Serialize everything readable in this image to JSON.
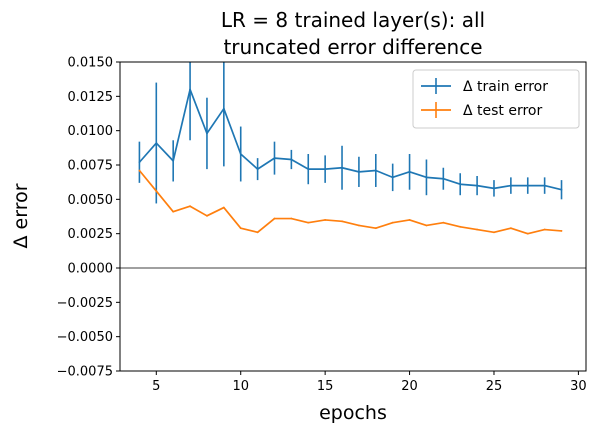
{
  "chart_data": {
    "type": "line",
    "title_lines": [
      "LR = 8 trained layer(s): all",
      "truncated error difference"
    ],
    "xlabel": "epochs",
    "ylabel": "Δ error",
    "xlim": [
      2.85,
      30.45
    ],
    "ylim": [
      -0.0075,
      0.015
    ],
    "xticks": [
      5,
      10,
      15,
      20,
      25,
      30
    ],
    "xtick_labels": [
      "5",
      "10",
      "15",
      "20",
      "25",
      "30"
    ],
    "yticks": [
      -0.0075,
      -0.005,
      -0.0025,
      0,
      0.0025,
      0.005,
      0.0075,
      0.01,
      0.0125,
      0.015
    ],
    "ytick_labels": [
      "−0.0075",
      "−0.0050",
      "−0.0025",
      "0.0000",
      "0.0025",
      "0.0050",
      "0.0075",
      "0.0100",
      "0.0125",
      "0.0150"
    ],
    "reference_line": {
      "y": 0,
      "color": "#808080"
    },
    "legend_position": "top-right",
    "x": [
      4,
      5,
      6,
      7,
      8,
      9,
      10,
      11,
      12,
      13,
      14,
      15,
      16,
      17,
      18,
      19,
      20,
      21,
      22,
      23,
      24,
      25,
      26,
      27,
      28,
      29
    ],
    "series": [
      {
        "name": "Δ train error",
        "color": "#1f77b4",
        "values": [
          0.0077,
          0.0091,
          0.0078,
          0.013,
          0.0098,
          0.0116,
          0.0083,
          0.0072,
          0.008,
          0.0079,
          0.0072,
          0.0072,
          0.0073,
          0.007,
          0.0071,
          0.0066,
          0.007,
          0.0066,
          0.0065,
          0.0061,
          0.006,
          0.0058,
          0.006,
          0.006,
          0.006,
          0.0057
        ],
        "errors": [
          0.0015,
          0.0044,
          0.0015,
          0.0037,
          0.0026,
          0.0042,
          0.002,
          0.0008,
          0.0012,
          0.0007,
          0.0011,
          0.001,
          0.0016,
          0.0011,
          0.0012,
          0.001,
          0.0013,
          0.0013,
          0.0008,
          0.0008,
          0.0007,
          0.0006,
          0.0006,
          0.0006,
          0.0006,
          0.0007
        ]
      },
      {
        "name": "Δ test error",
        "color": "#ff7f0e",
        "values": [
          0.0071,
          0.0056,
          0.0041,
          0.0045,
          0.0038,
          0.0044,
          0.0029,
          0.0026,
          0.0036,
          0.0036,
          0.0033,
          0.0035,
          0.0034,
          0.0031,
          0.0029,
          0.0033,
          0.0035,
          0.0031,
          0.0033,
          0.003,
          0.0028,
          0.0026,
          0.0029,
          0.0025,
          0.0028,
          0.0027
        ]
      }
    ]
  }
}
